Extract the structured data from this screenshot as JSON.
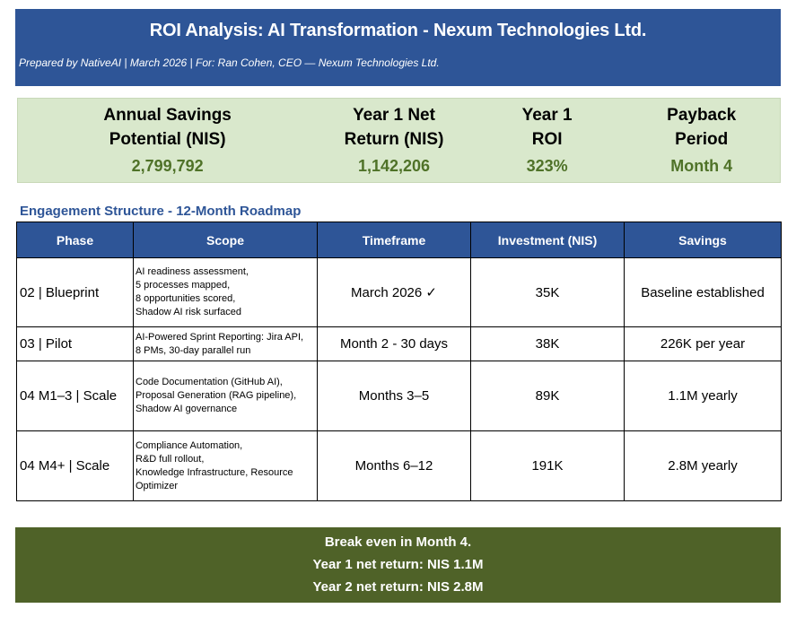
{
  "header": {
    "title": "ROI Analysis: AI Transformation -  Nexum Technologies Ltd.",
    "subtitle": "Prepared by NativeAI  |  March 2026  |  For: Ran Cohen, CEO — Nexum Technologies Ltd."
  },
  "kpis": [
    {
      "label_line1": "Annual Savings",
      "label_line2": "Potential (NIS)",
      "value": "2,799,792"
    },
    {
      "label_line1": "Year 1 Net",
      "label_line2": "Return (NIS)",
      "value": "1,142,206"
    },
    {
      "label_line1": "Year 1",
      "label_line2": "ROI",
      "value": "323%"
    },
    {
      "label_line1": "Payback",
      "label_line2": "Period",
      "value": "Month 4"
    }
  ],
  "section_title": "Engagement Structure - 12-Month Roadmap",
  "table": {
    "headers": [
      "Phase",
      "Scope",
      "Timeframe",
      "Investment (NIS)",
      "Savings"
    ],
    "rows": [
      {
        "phase": "02 | Blueprint",
        "scope": [
          "AI readiness assessment,",
          "5 processes mapped,",
          "8 opportunities scored,",
          "Shadow AI risk surfaced"
        ],
        "timeframe": "March 2026 ✓",
        "investment": "35K",
        "savings": "Baseline established"
      },
      {
        "phase": "03 | Pilot",
        "scope": [
          "AI-Powered Sprint Reporting: Jira API,",
          "8 PMs, 30-day parallel run"
        ],
        "timeframe": "Month 2 - 30 days",
        "investment": "38K",
        "savings": "226K per year"
      },
      {
        "phase": "04 M1–3 | Scale",
        "scope": [
          "Code Documentation (GitHub AI),",
          "Proposal Generation (RAG pipeline),",
          "Shadow AI governance"
        ],
        "timeframe": "Months 3–5",
        "investment": "89K",
        "savings": "1.1M yearly"
      },
      {
        "phase": "04 M4+ | Scale",
        "scope": [
          "Compliance Automation,",
          "R&D full rollout,",
          "Knowledge Infrastructure, Resource",
          "Optimizer"
        ],
        "timeframe": "Months 6–12",
        "investment": "191K",
        "savings": "2.8M yearly"
      }
    ]
  },
  "footer": {
    "lines": [
      "Break even in Month 4.",
      "Year 1 net return: NIS 1.1M",
      "Year 2 net return: NIS 2.8M"
    ]
  }
}
